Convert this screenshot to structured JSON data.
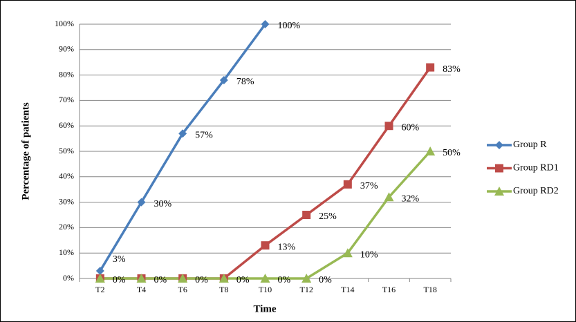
{
  "chart_data": {
    "type": "line",
    "x_label": "Time",
    "y_label": "Percentage of patients",
    "categories": [
      "T2",
      "T4",
      "T6",
      "T8",
      "T10",
      "T12",
      "T14",
      "T16",
      "T18"
    ],
    "series": [
      {
        "name": "Group R",
        "color": "#4a7ebb",
        "marker": "diamond",
        "values": [
          3,
          30,
          57,
          78,
          100,
          null,
          null,
          null,
          null
        ],
        "value_labels": [
          "3%",
          "30%",
          "57%",
          "78%",
          "100%",
          null,
          null,
          null,
          null
        ]
      },
      {
        "name": "Group RD1",
        "color": "#be4b48",
        "marker": "square",
        "values": [
          0,
          0,
          0,
          0,
          13,
          25,
          37,
          60,
          83
        ],
        "value_labels": [
          "0%",
          "0%",
          "0%",
          "0%",
          "13%",
          "25%",
          "37%",
          "60%",
          "83%"
        ]
      },
      {
        "name": "Group RD2",
        "color": "#98b954",
        "marker": "triangle",
        "values": [
          0,
          0,
          0,
          0,
          0,
          0,
          10,
          32,
          50
        ],
        "value_labels": [
          null,
          null,
          null,
          null,
          "0%",
          "0%",
          "10%",
          "32%",
          "50%"
        ]
      }
    ],
    "ylim": [
      0,
      100
    ],
    "yticks": [
      {
        "value": 0,
        "label": "0%"
      },
      {
        "value": 10,
        "label": "10%"
      },
      {
        "value": 20,
        "label": "20%"
      },
      {
        "value": 30,
        "label": "30%"
      },
      {
        "value": 40,
        "label": "40%"
      },
      {
        "value": 50,
        "label": "50%"
      },
      {
        "value": 60,
        "label": "60%"
      },
      {
        "value": 70,
        "label": "70%"
      },
      {
        "value": 80,
        "label": "80%"
      },
      {
        "value": 90,
        "label": "90%"
      },
      {
        "value": 100,
        "label": "100%"
      }
    ],
    "grid": true,
    "legend": "right"
  }
}
